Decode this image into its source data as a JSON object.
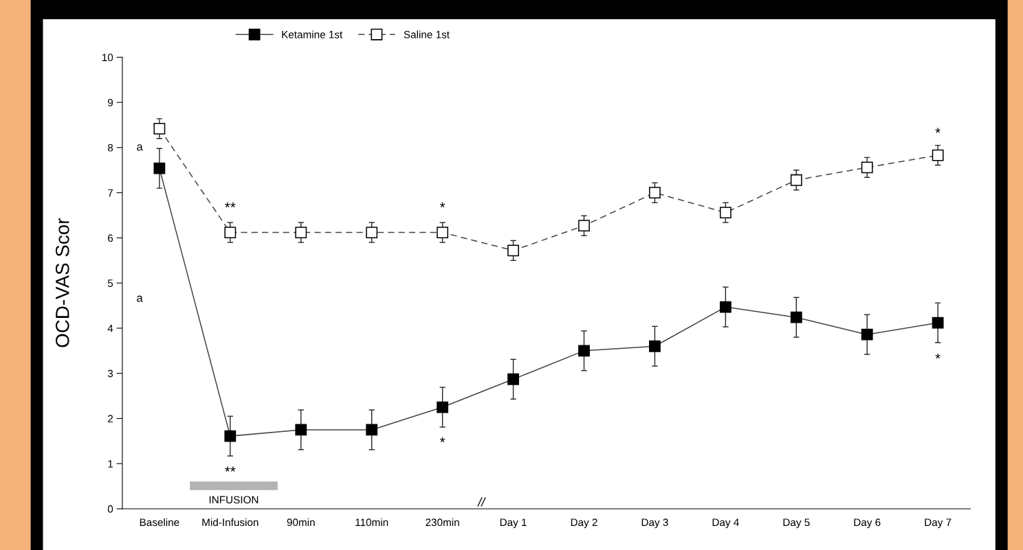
{
  "chart_data": {
    "type": "line",
    "ylabel": "OCD-VAS Scor",
    "categories": [
      "Baseline",
      "Mid-Infusion",
      "90min",
      "110min",
      "230min",
      "Day 1",
      "Day 2",
      "Day 3",
      "Day 4",
      "Day 5",
      "Day 6",
      "Day 7"
    ],
    "series": [
      {
        "name": "Ketamine 1st",
        "color": "#000000",
        "marker": "square",
        "line_style": "solid",
        "values": [
          7.54,
          1.61,
          1.75,
          1.75,
          2.25,
          2.87,
          3.5,
          3.6,
          4.47,
          4.24,
          3.86,
          4.12
        ],
        "errors": [
          0.44,
          0.44,
          0.44,
          0.44,
          0.44,
          0.44,
          0.44,
          0.44,
          0.44,
          0.44,
          0.44,
          0.44
        ]
      },
      {
        "name": "Saline 1st",
        "color": "#ffffff",
        "marker": "square",
        "line_style": "dashed",
        "values": [
          8.42,
          6.12,
          6.12,
          6.12,
          6.12,
          5.72,
          6.27,
          7.0,
          6.56,
          7.28,
          7.56,
          7.83
        ],
        "errors": [
          0.22,
          0.22,
          0.22,
          0.22,
          0.22,
          0.22,
          0.22,
          0.22,
          0.22,
          0.22,
          0.22,
          0.22
        ]
      }
    ],
    "ylim": [
      0,
      10
    ],
    "yticks": [
      0,
      1,
      2,
      3,
      4,
      5,
      6,
      7,
      8,
      9,
      10
    ],
    "grid": false,
    "legend": "top",
    "annotations": [
      "INFUSION",
      "//",
      "a",
      "a",
      "**",
      "**",
      "*",
      "*",
      "*",
      "*"
    ]
  }
}
